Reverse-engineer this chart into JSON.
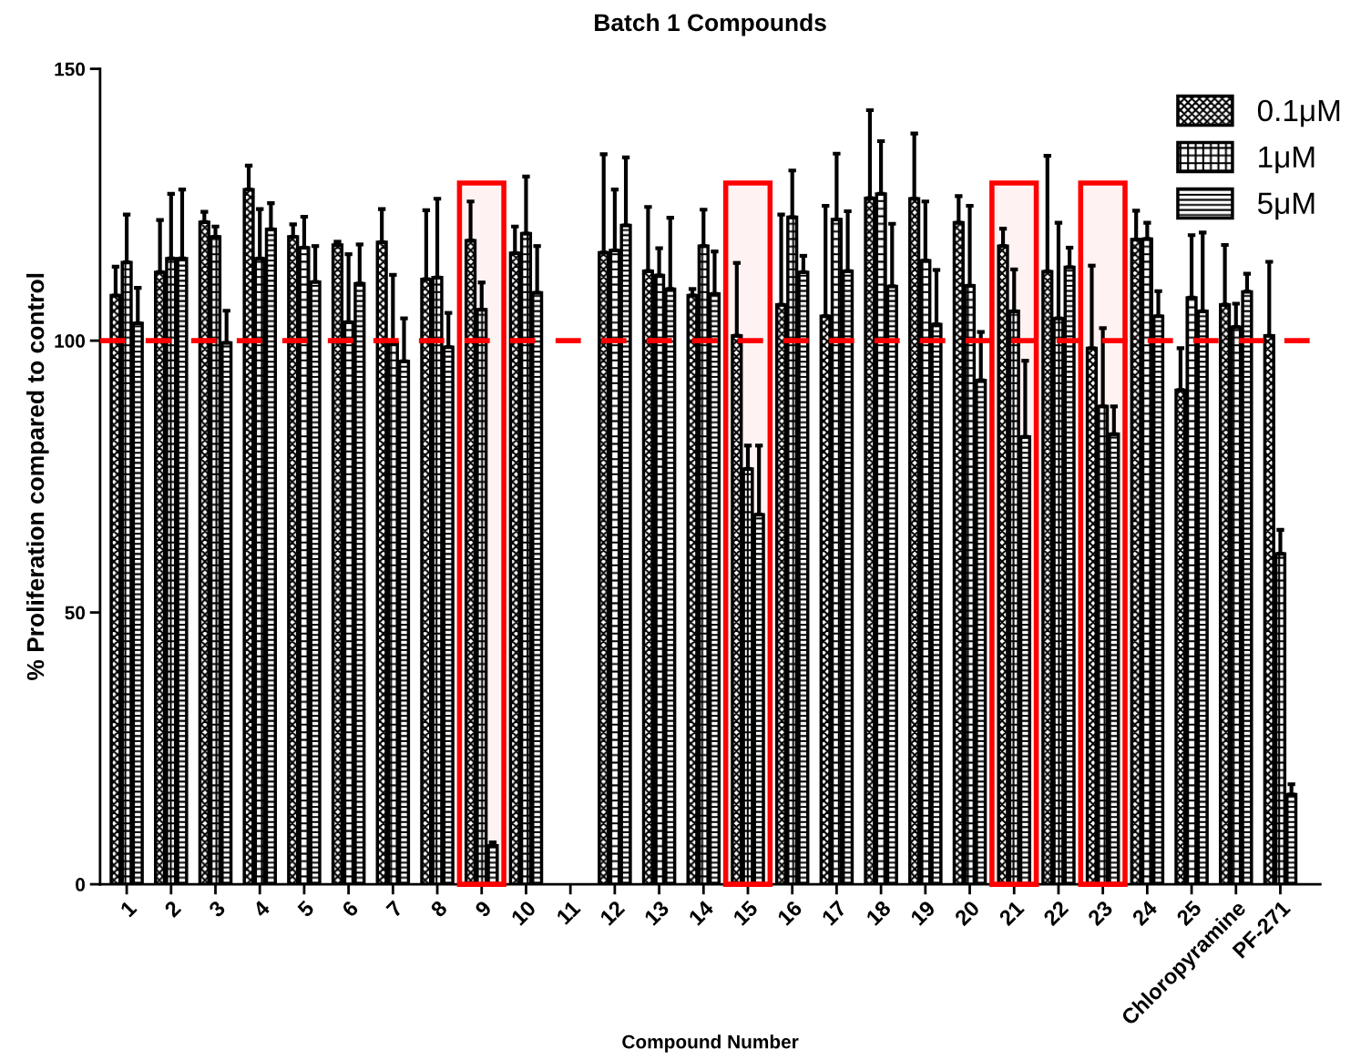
{
  "chart_data": {
    "type": "bar",
    "title": "Batch 1 Compounds",
    "xlabel": "Compound Number",
    "ylabel": "% Proliferation compared to control",
    "categories": [
      "1",
      "2",
      "3",
      "4",
      "5",
      "6",
      "7",
      "8",
      "9",
      "10",
      "11",
      "12",
      "13",
      "14",
      "15",
      "16",
      "17",
      "18",
      "19",
      "20",
      "21",
      "22",
      "23",
      "24",
      "25",
      "Chloropyramine",
      "PF-271"
    ],
    "series": [
      {
        "name": "0.1μM",
        "color": "#000000",
        "values": [
          108.3,
          112.6,
          121.8,
          127.8,
          119.1,
          117.6,
          118.1,
          111.3,
          118.4,
          116.1,
          null,
          116.2,
          112.8,
          108.3,
          100.9,
          106.6,
          104.5,
          126.2,
          126.1,
          121.7,
          117.4,
          112.7,
          98.6,
          118.6,
          90.9,
          106.6,
          100.9
        ],
        "errors": [
          [
            108.3,
            113.6
          ],
          [
            112.6,
            122.2
          ],
          [
            121.8,
            123.7
          ],
          [
            127.8,
            132.2
          ],
          [
            119.1,
            121.4
          ],
          [
            117.6,
            118.2
          ],
          [
            118.1,
            124.2
          ],
          [
            111.3,
            124.0
          ],
          [
            118.4,
            125.6
          ],
          [
            116.1,
            121.0
          ],
          null,
          [
            116.2,
            134.3
          ],
          [
            112.8,
            124.6
          ],
          [
            108.3,
            109.5
          ],
          [
            100.9,
            114.3
          ],
          [
            106.6,
            123.2
          ],
          [
            104.5,
            124.8
          ],
          [
            126.2,
            142.4
          ],
          [
            126.1,
            138.1
          ],
          [
            121.7,
            126.6
          ],
          [
            117.4,
            120.6
          ],
          [
            112.7,
            134.0
          ],
          [
            98.6,
            113.8
          ],
          [
            118.6,
            123.9
          ],
          [
            90.9,
            98.6
          ],
          [
            106.6,
            117.6
          ],
          [
            100.9,
            114.5
          ]
        ]
      },
      {
        "name": "1μM",
        "color": "#000000",
        "values": [
          114.4,
          115.1,
          119.1,
          115.1,
          117.1,
          103.4,
          99.5,
          111.6,
          105.7,
          119.7,
          null,
          116.6,
          112.0,
          117.4,
          76.4,
          122.7,
          122.3,
          127.0,
          114.7,
          110.1,
          105.4,
          104.1,
          87.9,
          118.7,
          107.9,
          102.5,
          60.8
        ],
        "errors": [
          [
            114.4,
            123.2
          ],
          [
            115.1,
            127.0
          ],
          [
            119.1,
            121.0
          ],
          [
            115.1,
            124.2
          ],
          [
            117.1,
            122.8
          ],
          [
            103.4,
            115.9
          ],
          [
            99.5,
            112.1
          ],
          [
            111.6,
            126.1
          ],
          [
            105.7,
            110.7
          ],
          [
            119.7,
            130.2
          ],
          null,
          [
            116.6,
            127.8
          ],
          [
            112.0,
            117.0
          ],
          [
            117.4,
            124.1
          ],
          [
            76.4,
            80.7
          ],
          [
            122.7,
            131.3
          ],
          [
            122.3,
            134.4
          ],
          [
            127.0,
            136.7
          ],
          [
            114.7,
            125.6
          ],
          [
            110.1,
            124.8
          ],
          [
            105.4,
            113.1
          ],
          [
            104.1,
            121.7
          ],
          [
            87.9,
            102.3
          ],
          [
            118.7,
            121.7
          ],
          [
            107.9,
            119.4
          ],
          [
            102.5,
            106.8
          ],
          [
            60.8,
            65.2
          ]
        ]
      },
      {
        "name": "5μM",
        "color": "#000000",
        "values": [
          103.2,
          115.1,
          99.6,
          120.5,
          110.8,
          110.5,
          96.2,
          98.8,
          7.1,
          108.8,
          null,
          121.2,
          109.5,
          108.6,
          68.0,
          112.6,
          112.8,
          110.0,
          103.0,
          92.7,
          82.3,
          113.5,
          82.8,
          104.5,
          105.4,
          109.0,
          16.5
        ],
        "errors": [
          [
            103.2,
            109.7
          ],
          [
            115.1,
            127.8
          ],
          [
            99.6,
            105.5
          ],
          [
            120.5,
            125.3
          ],
          [
            110.8,
            117.4
          ],
          [
            110.5,
            117.7
          ],
          [
            96.2,
            104.1
          ],
          [
            98.8,
            105.1
          ],
          [
            7.1,
            7.7
          ],
          [
            108.8,
            117.4
          ],
          null,
          [
            121.2,
            133.7
          ],
          [
            109.5,
            122.6
          ],
          [
            108.6,
            116.4
          ],
          [
            68.0,
            80.7
          ],
          [
            112.6,
            115.6
          ],
          [
            112.8,
            123.8
          ],
          [
            110.0,
            121.5
          ],
          [
            103.0,
            113.0
          ],
          [
            92.7,
            101.6
          ],
          [
            82.3,
            96.3
          ],
          [
            113.5,
            117.1
          ],
          [
            82.8,
            87.9
          ],
          [
            104.5,
            109.1
          ],
          [
            105.4,
            119.9
          ],
          [
            109.0,
            112.3
          ],
          [
            16.5,
            18.4
          ]
        ]
      }
    ],
    "ylim": [
      0,
      150
    ],
    "yticks": [
      0,
      50,
      100,
      150
    ],
    "grid": false,
    "legend": "top right",
    "ref_lines": [
      {
        "axis": "y",
        "value": 100,
        "color": "#ff0000",
        "line_style": "dashed"
      }
    ],
    "bands": [
      {
        "axis": "x",
        "from": "9",
        "to": "9",
        "color": "#ff0000"
      },
      {
        "axis": "x",
        "from": "15",
        "to": "15",
        "color": "#ff0000"
      },
      {
        "axis": "x",
        "from": "21",
        "to": "21",
        "color": "#ff0000"
      },
      {
        "axis": "x",
        "from": "23",
        "to": "23",
        "color": "#ff0000"
      }
    ]
  }
}
